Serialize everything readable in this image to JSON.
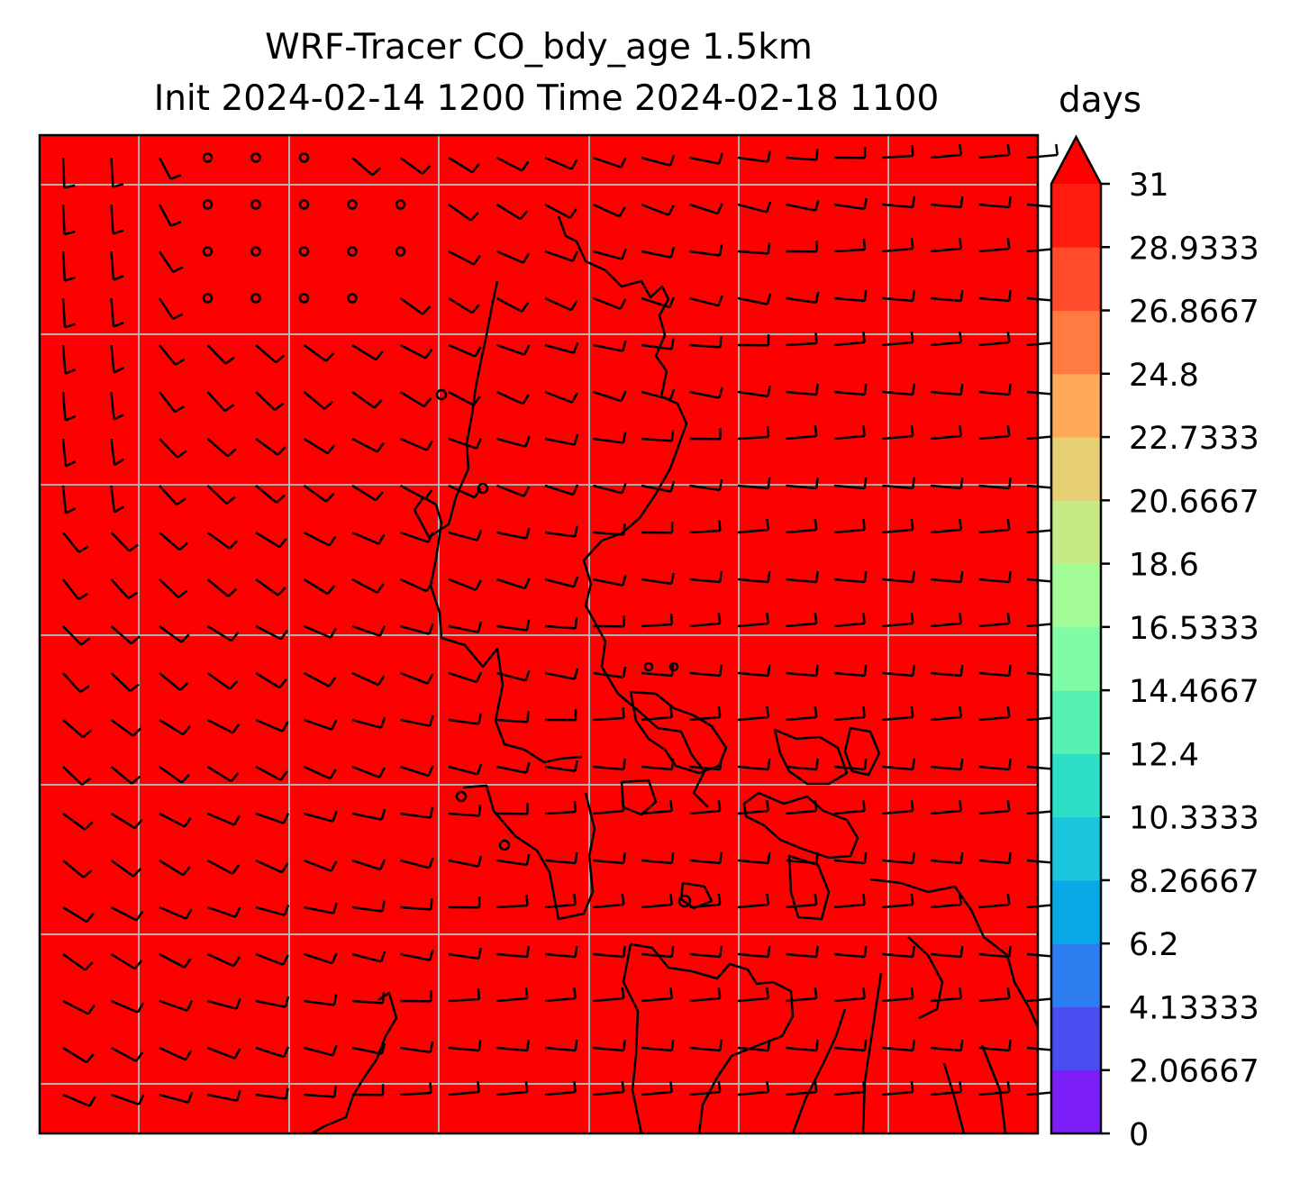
{
  "chart_data": {
    "type": "heatmap",
    "title_line1": "WRF-Tracer CO_bdy_age 1.5km",
    "title_line2": "Init 2024-02-14 1200 Time 2024-02-18 1100",
    "field": "CO_bdy_age",
    "field_value_everywhere": 31,
    "colorbar": {
      "label": "days",
      "ticks": [
        "0",
        "2.06667",
        "4.13333",
        "6.2",
        "8.26667",
        "10.3333",
        "12.4",
        "14.4667",
        "16.5333",
        "18.6",
        "20.6667",
        "22.7333",
        "24.8",
        "26.8667",
        "28.9333",
        "31"
      ],
      "levels": [
        0,
        31
      ],
      "extend": "max",
      "colors": [
        "#7a1df7",
        "#4a4df0",
        "#2b7df0",
        "#0aa8e6",
        "#1ac6dd",
        "#2edfc8",
        "#55f2b4",
        "#80fca6",
        "#a2fb94",
        "#c7ea87",
        "#e7d074",
        "#ffaa5b",
        "#ff7b42",
        "#ff4c2a",
        "#ff1c0f",
        "#ff0000"
      ]
    },
    "map": {
      "background_color": "#fd0000",
      "gridlines": "on",
      "grid_color": "#b0b0b0",
      "coastline_color": "#000000",
      "wind_barb_color": "#000000"
    }
  }
}
